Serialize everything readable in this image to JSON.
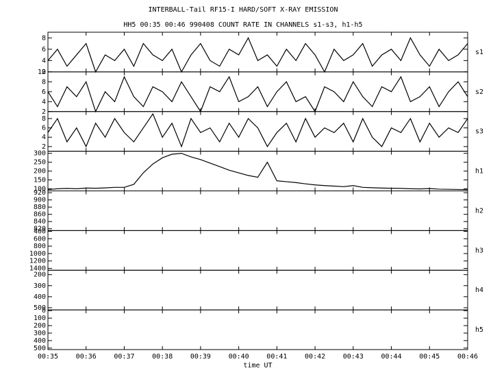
{
  "title": "INTERBALL-Tail RF15-I HARD/SOFT X-RAY EMISSION",
  "subtitle": "HH5 00:35 00:46 990408  COUNT RATE IN CHANNELS s1-s3, h1-h5",
  "chart_data": [
    {
      "type": "line",
      "name": "s1",
      "ylim": [
        2,
        9
      ],
      "yticks": [
        2,
        4,
        6,
        8
      ],
      "xlim": [
        2100,
        2760
      ],
      "x": [
        2100,
        2115,
        2130,
        2145,
        2160,
        2175,
        2190,
        2205,
        2220,
        2235,
        2250,
        2265,
        2280,
        2295,
        2310,
        2325,
        2340,
        2355,
        2370,
        2385,
        2400,
        2415,
        2430,
        2445,
        2460,
        2475,
        2490,
        2505,
        2520,
        2535,
        2550,
        2565,
        2580,
        2595,
        2610,
        2625,
        2640,
        2655,
        2670,
        2685,
        2700,
        2715,
        2730,
        2745,
        2760
      ],
      "values": [
        4,
        6,
        3,
        5,
        7,
        2,
        5,
        4,
        6,
        3,
        7,
        5,
        4,
        6,
        2,
        5,
        7,
        4,
        3,
        6,
        5,
        8,
        4,
        5,
        3,
        6,
        4,
        7,
        5,
        2,
        6,
        4,
        5,
        7,
        3,
        5,
        6,
        4,
        8,
        5,
        3,
        6,
        4,
        5,
        7
      ]
    },
    {
      "type": "line",
      "name": "s2",
      "ylim": [
        2,
        10
      ],
      "yticks": [
        2,
        4,
        6,
        8,
        10
      ],
      "xlim": [
        2100,
        2760
      ],
      "x": [
        2100,
        2115,
        2130,
        2145,
        2160,
        2175,
        2190,
        2205,
        2220,
        2235,
        2250,
        2265,
        2280,
        2295,
        2310,
        2325,
        2340,
        2355,
        2370,
        2385,
        2400,
        2415,
        2430,
        2445,
        2460,
        2475,
        2490,
        2505,
        2520,
        2535,
        2550,
        2565,
        2580,
        2595,
        2610,
        2625,
        2640,
        2655,
        2670,
        2685,
        2700,
        2715,
        2730,
        2745,
        2760
      ],
      "values": [
        6,
        3,
        7,
        5,
        8,
        2,
        6,
        4,
        9,
        5,
        3,
        7,
        6,
        4,
        8,
        5,
        2,
        7,
        6,
        9,
        4,
        5,
        7,
        3,
        6,
        8,
        4,
        5,
        2,
        7,
        6,
        4,
        8,
        5,
        3,
        7,
        6,
        9,
        4,
        5,
        7,
        3,
        6,
        8,
        5
      ]
    },
    {
      "type": "line",
      "name": "s3",
      "ylim": [
        1,
        9.5
      ],
      "yticks": [
        2,
        4,
        6,
        8
      ],
      "xlim": [
        2100,
        2760
      ],
      "x": [
        2100,
        2115,
        2130,
        2145,
        2160,
        2175,
        2190,
        2205,
        2220,
        2235,
        2250,
        2265,
        2280,
        2295,
        2310,
        2325,
        2340,
        2355,
        2370,
        2385,
        2400,
        2415,
        2430,
        2445,
        2460,
        2475,
        2490,
        2505,
        2520,
        2535,
        2550,
        2565,
        2580,
        2595,
        2610,
        2625,
        2640,
        2655,
        2670,
        2685,
        2700,
        2715,
        2730,
        2745,
        2760
      ],
      "values": [
        5,
        8,
        3,
        6,
        2,
        7,
        4,
        8,
        5,
        3,
        6,
        9,
        4,
        7,
        2,
        8,
        5,
        6,
        3,
        7,
        4,
        8,
        6,
        2,
        5,
        7,
        3,
        8,
        4,
        6,
        5,
        7,
        3,
        8,
        4,
        2,
        6,
        5,
        8,
        3,
        7,
        4,
        6,
        5,
        8
      ]
    },
    {
      "type": "line",
      "name": "h1",
      "ylim": [
        88,
        312
      ],
      "yticks": [
        100,
        150,
        200,
        250,
        300
      ],
      "xlim": [
        2100,
        2760
      ],
      "x": [
        2100,
        2115,
        2130,
        2145,
        2160,
        2175,
        2190,
        2205,
        2220,
        2235,
        2250,
        2265,
        2280,
        2295,
        2310,
        2325,
        2340,
        2355,
        2370,
        2385,
        2400,
        2415,
        2430,
        2445,
        2460,
        2475,
        2490,
        2505,
        2520,
        2535,
        2550,
        2565,
        2580,
        2595,
        2610,
        2625,
        2640,
        2655,
        2670,
        2685,
        2700,
        2715,
        2730,
        2745,
        2760
      ],
      "values": [
        95,
        100,
        102,
        100,
        104,
        103,
        105,
        108,
        108,
        125,
        190,
        240,
        275,
        295,
        300,
        280,
        265,
        245,
        225,
        205,
        190,
        175,
        165,
        250,
        145,
        140,
        135,
        128,
        122,
        118,
        115,
        112,
        118,
        108,
        106,
        104,
        103,
        102,
        100,
        99,
        101,
        98,
        97,
        96,
        95
      ]
    },
    {
      "type": "line",
      "name": "h2",
      "ylim": [
        815,
        925
      ],
      "yticks": [
        820,
        840,
        860,
        880,
        900,
        920
      ]
    },
    {
      "type": "line",
      "name": "h3",
      "ylim": [
        1450,
        380
      ],
      "yticks": [
        400,
        600,
        800,
        1000,
        1200,
        1400
      ]
    },
    {
      "type": "line",
      "name": "h4",
      "ylim": [
        520,
        160
      ],
      "yticks": [
        200,
        300,
        400,
        500
      ]
    },
    {
      "type": "line",
      "name": "h5",
      "ylim": [
        520,
        -10
      ],
      "yticks": [
        0,
        100,
        200,
        300,
        400,
        500
      ],
      "xlim": [
        2100,
        2760
      ],
      "xlabel": "time UT",
      "xticks": [
        {
          "value": 2100,
          "label": "00:35"
        },
        {
          "value": 2160,
          "label": "00:36"
        },
        {
          "value": 2220,
          "label": "00:37"
        },
        {
          "value": 2280,
          "label": "00:38"
        },
        {
          "value": 2340,
          "label": "00:39"
        },
        {
          "value": 2400,
          "label": "00:40"
        },
        {
          "value": 2460,
          "label": "00:41"
        },
        {
          "value": 2520,
          "label": "00:42"
        },
        {
          "value": 2580,
          "label": "00:43"
        },
        {
          "value": 2640,
          "label": "00:44"
        },
        {
          "value": 2700,
          "label": "00:45"
        },
        {
          "value": 2760,
          "label": "00:46"
        }
      ]
    }
  ]
}
